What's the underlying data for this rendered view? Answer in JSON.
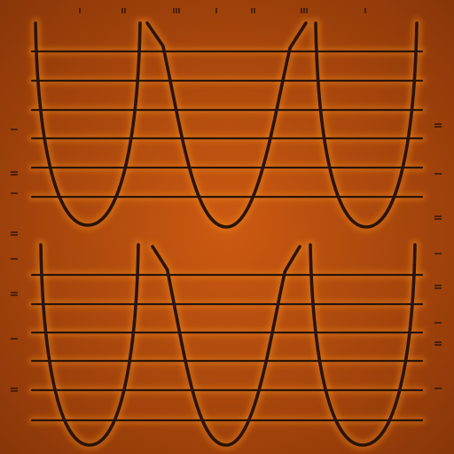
{
  "scene": {
    "description_free": true,
    "colors": {
      "background_center": "#cc5a12",
      "background_edge": "#8a3608",
      "glow": "#f2891f",
      "ink": "#2a1408"
    },
    "panels": [
      {
        "id": "top",
        "string_count": 6,
        "wave_count": 3
      },
      {
        "id": "bottom",
        "string_count": 6,
        "wave_count": 3
      }
    ]
  }
}
